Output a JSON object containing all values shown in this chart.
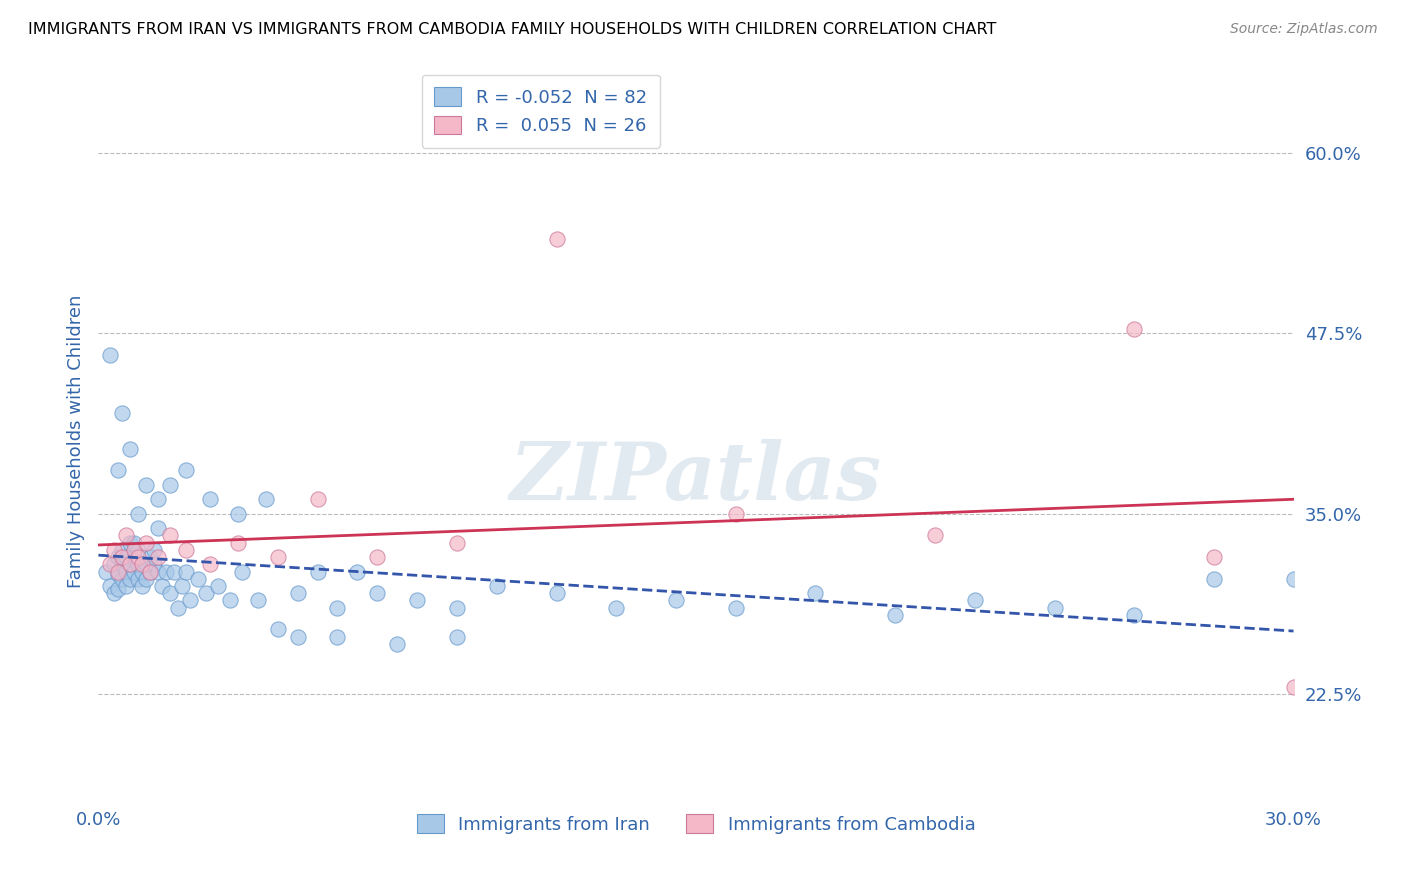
{
  "title": "IMMIGRANTS FROM IRAN VS IMMIGRANTS FROM CAMBODIA FAMILY HOUSEHOLDS WITH CHILDREN CORRELATION CHART",
  "source": "Source: ZipAtlas.com",
  "ylabel": "Family Households with Children",
  "xmin": 0.0,
  "xmax": 0.3,
  "ymin": 0.15,
  "ymax": 0.65,
  "yticks": [
    0.225,
    0.35,
    0.475,
    0.6
  ],
  "ytick_labels": [
    "22.5%",
    "35.0%",
    "47.5%",
    "60.0%"
  ],
  "iran_color": "#a8c8e8",
  "iran_edge_color": "#6699cc",
  "cambodia_color": "#f4b8c8",
  "cambodia_edge_color": "#cc7799",
  "iran_line_color": "#3355aa",
  "cambodia_line_color": "#cc3355",
  "legend_iran_label": "R = -0.052  N = 82",
  "legend_cambodia_label": "R =  0.055  N = 26",
  "legend_x_label": "Immigrants from Iran",
  "legend_cambodia_x_label": "Immigrants from Cambodia",
  "watermark": "ZIPatlas",
  "iran_x": [
    0.002,
    0.003,
    0.004,
    0.004,
    0.005,
    0.005,
    0.005,
    0.006,
    0.006,
    0.006,
    0.007,
    0.007,
    0.007,
    0.008,
    0.008,
    0.008,
    0.009,
    0.009,
    0.009,
    0.01,
    0.01,
    0.01,
    0.011,
    0.011,
    0.012,
    0.012,
    0.013,
    0.013,
    0.014,
    0.014,
    0.015,
    0.015,
    0.016,
    0.017,
    0.018,
    0.019,
    0.02,
    0.021,
    0.022,
    0.023,
    0.025,
    0.027,
    0.03,
    0.033,
    0.036,
    0.04,
    0.045,
    0.05,
    0.055,
    0.06,
    0.065,
    0.07,
    0.08,
    0.09,
    0.1,
    0.115,
    0.13,
    0.145,
    0.16,
    0.18,
    0.2,
    0.22,
    0.24,
    0.26,
    0.28,
    0.3,
    0.003,
    0.005,
    0.006,
    0.008,
    0.01,
    0.012,
    0.015,
    0.018,
    0.022,
    0.028,
    0.035,
    0.042,
    0.05,
    0.06,
    0.075,
    0.09
  ],
  "iran_y": [
    0.31,
    0.3,
    0.295,
    0.315,
    0.32,
    0.308,
    0.298,
    0.305,
    0.315,
    0.325,
    0.31,
    0.32,
    0.3,
    0.315,
    0.33,
    0.305,
    0.31,
    0.32,
    0.33,
    0.315,
    0.305,
    0.325,
    0.31,
    0.3,
    0.315,
    0.305,
    0.32,
    0.31,
    0.315,
    0.325,
    0.31,
    0.34,
    0.3,
    0.31,
    0.295,
    0.31,
    0.285,
    0.3,
    0.31,
    0.29,
    0.305,
    0.295,
    0.3,
    0.29,
    0.31,
    0.29,
    0.27,
    0.295,
    0.31,
    0.285,
    0.31,
    0.295,
    0.29,
    0.285,
    0.3,
    0.295,
    0.285,
    0.29,
    0.285,
    0.295,
    0.28,
    0.29,
    0.285,
    0.28,
    0.305,
    0.305,
    0.46,
    0.38,
    0.42,
    0.395,
    0.35,
    0.37,
    0.36,
    0.37,
    0.38,
    0.36,
    0.35,
    0.36,
    0.265,
    0.265,
    0.26,
    0.265
  ],
  "cambodia_x": [
    0.003,
    0.004,
    0.005,
    0.006,
    0.007,
    0.008,
    0.009,
    0.01,
    0.011,
    0.012,
    0.013,
    0.015,
    0.018,
    0.022,
    0.028,
    0.035,
    0.045,
    0.055,
    0.07,
    0.09,
    0.115,
    0.16,
    0.21,
    0.26,
    0.28,
    0.3
  ],
  "cambodia_y": [
    0.315,
    0.325,
    0.31,
    0.32,
    0.335,
    0.315,
    0.325,
    0.32,
    0.315,
    0.33,
    0.31,
    0.32,
    0.335,
    0.325,
    0.315,
    0.33,
    0.32,
    0.36,
    0.32,
    0.33,
    0.54,
    0.35,
    0.335,
    0.478,
    0.32,
    0.23
  ]
}
